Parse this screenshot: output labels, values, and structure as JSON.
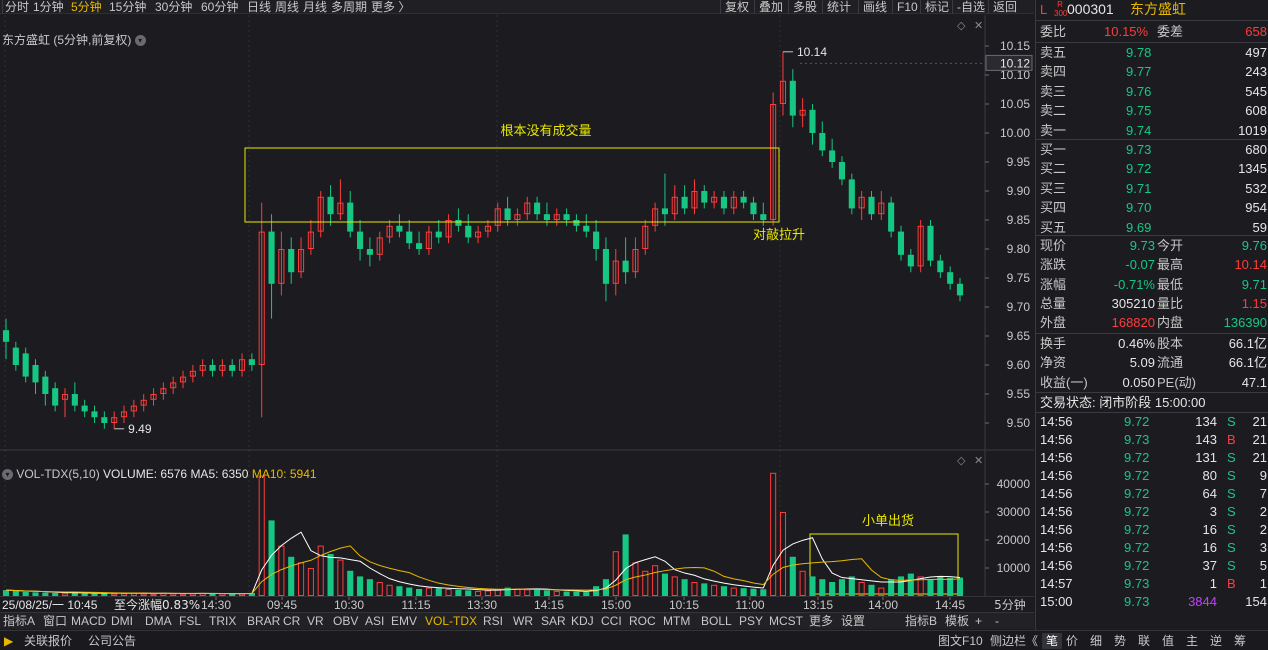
{
  "toolbar": {
    "periods": [
      "分时",
      "1分钟",
      "5分钟",
      "15分钟",
      "30分钟",
      "60分钟",
      "日线",
      "周线",
      "月线",
      "多周期",
      "更多 〉"
    ],
    "active_period": "5分钟",
    "tools": [
      "复权",
      "叠加",
      "多股",
      "统计",
      "画线",
      "F10",
      "标记",
      "-自选",
      "返回"
    ]
  },
  "chart": {
    "title": "东方盛虹 (5分钟,前复权)",
    "price_axis": [
      "10.15",
      "10.10",
      "10.05",
      "10.00",
      "9.95",
      "9.90",
      "9.85",
      "9.80",
      "9.75",
      "9.70",
      "9.65",
      "9.60",
      "9.55",
      "9.50"
    ],
    "current_price_label": "10.12",
    "high_label": "10.14",
    "low_label": "9.49",
    "annotations": {
      "no_volume": "根本没有成交量",
      "pullup": "对敲拉升",
      "small_orders": "小单出货"
    },
    "vol": {
      "name": "VOL-TDX(5,10)",
      "volume": "VOLUME: 6576",
      "ma5": "MA5: 6350",
      "ma10": "MA10: 5941",
      "axis": [
        "40000",
        "30000",
        "20000",
        "10000"
      ]
    },
    "time_axis": {
      "cursor": "25/08/25/一 10:45",
      "change": "至今涨幅0.83%",
      "ticks": [
        "14:30",
        "09:45",
        "10:30",
        "11:15",
        "13:30",
        "14:15",
        "15:00",
        "10:15",
        "11:00",
        "13:15",
        "14:00",
        "14:45"
      ],
      "period": "5分钟"
    }
  },
  "indicators": [
    "指标A",
    "窗口",
    "MACD",
    "DMI",
    "DMA",
    "FSL",
    "TRIX",
    "BRAR",
    "CR",
    "VR",
    "OBV",
    "ASI",
    "EMV",
    "VOL-TDX",
    "RSI",
    "WR",
    "SAR",
    "KDJ",
    "CCI",
    "ROC",
    "MTM",
    "BOLL",
    "PSY",
    "MCST",
    "更多",
    "设置",
    "指标B",
    "模板",
    "+",
    "-"
  ],
  "active_indicator": "VOL-TDX",
  "statusbar": {
    "left": [
      "关联报价",
      "公司公告"
    ],
    "right": [
      "图文F10",
      "侧边栏《",
      "笔",
      "价",
      "细",
      "势",
      "联",
      "值",
      "主",
      "逆",
      "筹"
    ]
  },
  "quote": {
    "market_tag": "L",
    "index_tag": "R\n300",
    "code": "000301",
    "name": "东方盛虹",
    "weibi_label": "委比",
    "weibi": "10.15%",
    "weicha_label": "委差",
    "weicha": "658",
    "asks": [
      {
        "label": "卖五",
        "price": "9.78",
        "vol": "497"
      },
      {
        "label": "卖四",
        "price": "9.77",
        "vol": "243"
      },
      {
        "label": "卖三",
        "price": "9.76",
        "vol": "545"
      },
      {
        "label": "卖二",
        "price": "9.75",
        "vol": "608"
      },
      {
        "label": "卖一",
        "price": "9.74",
        "vol": "1019"
      }
    ],
    "bids": [
      {
        "label": "买一",
        "price": "9.73",
        "vol": "680"
      },
      {
        "label": "买二",
        "price": "9.72",
        "vol": "1345"
      },
      {
        "label": "买三",
        "price": "9.71",
        "vol": "532"
      },
      {
        "label": "买四",
        "price": "9.70",
        "vol": "954"
      },
      {
        "label": "买五",
        "price": "9.69",
        "vol": "59"
      }
    ],
    "stats": [
      {
        "l1": "现价",
        "v1": "9.73",
        "c1": "green",
        "l2": "今开",
        "v2": "9.76",
        "c2": "green"
      },
      {
        "l1": "涨跌",
        "v1": "-0.07",
        "c1": "green",
        "l2": "最高",
        "v2": "10.14",
        "c2": "red"
      },
      {
        "l1": "涨幅",
        "v1": "-0.71%",
        "c1": "green",
        "l2": "最低",
        "v2": "9.71",
        "c2": "green"
      },
      {
        "l1": "总量",
        "v1": "305210",
        "c1": "white",
        "l2": "量比",
        "v2": "1.15",
        "c2": "red"
      },
      {
        "l1": "外盘",
        "v1": "168820",
        "c1": "red",
        "l2": "内盘",
        "v2": "136390",
        "c2": "green"
      }
    ],
    "stats2": [
      {
        "l1": "换手",
        "v1": "0.46%",
        "l2": "股本",
        "v2": "66.1亿"
      },
      {
        "l1": "净资",
        "v1": "5.09",
        "l2": "流通",
        "v2": "66.1亿"
      },
      {
        "l1": "收益(一)",
        "v1": "0.050",
        "l2": "PE(动)",
        "v2": "47.1"
      }
    ],
    "trade_status": "交易状态: 闭市阶段 15:00:00",
    "ticks": [
      {
        "t": "14:56",
        "p": "9.72",
        "v": "134",
        "side": "S",
        "n": "21"
      },
      {
        "t": "14:56",
        "p": "9.73",
        "v": "143",
        "side": "B",
        "n": "21"
      },
      {
        "t": "14:56",
        "p": "9.72",
        "v": "131",
        "side": "S",
        "n": "21"
      },
      {
        "t": "14:56",
        "p": "9.72",
        "v": "80",
        "side": "S",
        "n": "9"
      },
      {
        "t": "14:56",
        "p": "9.72",
        "v": "64",
        "side": "S",
        "n": "7"
      },
      {
        "t": "14:56",
        "p": "9.72",
        "v": "3",
        "side": "S",
        "n": "2"
      },
      {
        "t": "14:56",
        "p": "9.72",
        "v": "16",
        "side": "S",
        "n": "2"
      },
      {
        "t": "14:56",
        "p": "9.72",
        "v": "16",
        "side": "S",
        "n": "3"
      },
      {
        "t": "14:56",
        "p": "9.72",
        "v": "37",
        "side": "S",
        "n": "5"
      },
      {
        "t": "14:57",
        "p": "9.73",
        "v": "1",
        "side": "B",
        "n": "1"
      },
      {
        "t": "15:00",
        "p": "9.73",
        "v": "3844",
        "side": "",
        "n": "154"
      }
    ]
  },
  "colors": {
    "up": "#ff3b3b",
    "down": "#16c784",
    "annotation_box": "#e8e800",
    "ma5": "#ffffff",
    "ma10": "#e8b800",
    "background": "#1c1c20"
  },
  "chart_data": {
    "type": "candlestick",
    "ylim": [
      9.47,
      10.17
    ],
    "candles": [
      [
        9.66,
        9.68,
        9.64,
        9.61
      ],
      [
        9.63,
        9.64,
        9.6,
        9.59
      ],
      [
        9.62,
        9.63,
        9.58,
        9.57
      ],
      [
        9.6,
        9.61,
        9.57,
        9.55
      ],
      [
        9.58,
        9.59,
        9.55,
        9.53
      ],
      [
        9.56,
        9.57,
        9.53,
        9.52
      ],
      [
        9.54,
        9.56,
        9.55,
        9.51
      ],
      [
        9.55,
        9.57,
        9.53,
        9.52
      ],
      [
        9.53,
        9.54,
        9.52,
        9.51
      ],
      [
        9.52,
        9.53,
        9.51,
        9.5
      ],
      [
        9.51,
        9.52,
        9.5,
        9.49
      ],
      [
        9.5,
        9.52,
        9.51,
        9.49
      ],
      [
        9.51,
        9.53,
        9.52,
        9.5
      ],
      [
        9.52,
        9.54,
        9.53,
        9.51
      ],
      [
        9.53,
        9.55,
        9.54,
        9.52
      ],
      [
        9.54,
        9.56,
        9.55,
        9.53
      ],
      [
        9.55,
        9.57,
        9.56,
        9.54
      ],
      [
        9.56,
        9.58,
        9.57,
        9.55
      ],
      [
        9.57,
        9.59,
        9.58,
        9.56
      ],
      [
        9.58,
        9.6,
        9.59,
        9.57
      ],
      [
        9.59,
        9.61,
        9.6,
        9.58
      ],
      [
        9.6,
        9.61,
        9.59,
        9.58
      ],
      [
        9.59,
        9.61,
        9.6,
        9.58
      ],
      [
        9.6,
        9.61,
        9.59,
        9.58
      ],
      [
        9.59,
        9.62,
        9.61,
        9.58
      ],
      [
        9.61,
        9.62,
        9.6,
        9.59
      ],
      [
        9.6,
        9.88,
        9.83,
        9.51
      ],
      [
        9.83,
        9.86,
        9.74,
        9.68
      ],
      [
        9.74,
        9.83,
        9.8,
        9.72
      ],
      [
        9.8,
        9.82,
        9.76,
        9.74
      ],
      [
        9.76,
        9.82,
        9.8,
        9.75
      ],
      [
        9.8,
        9.85,
        9.83,
        9.79
      ],
      [
        9.83,
        9.9,
        9.89,
        9.82
      ],
      [
        9.89,
        9.91,
        9.86,
        9.84
      ],
      [
        9.86,
        9.92,
        9.88,
        9.85
      ],
      [
        9.88,
        9.9,
        9.83,
        9.82
      ],
      [
        9.83,
        9.85,
        9.8,
        9.78
      ],
      [
        9.8,
        9.82,
        9.79,
        9.77
      ],
      [
        9.79,
        9.83,
        9.82,
        9.78
      ],
      [
        9.82,
        9.85,
        9.84,
        9.81
      ],
      [
        9.84,
        9.86,
        9.83,
        9.82
      ],
      [
        9.83,
        9.85,
        9.81,
        9.8
      ],
      [
        9.81,
        9.83,
        9.8,
        9.79
      ],
      [
        9.8,
        9.84,
        9.83,
        9.79
      ],
      [
        9.83,
        9.85,
        9.82,
        9.81
      ],
      [
        9.82,
        9.86,
        9.85,
        9.81
      ],
      [
        9.85,
        9.87,
        9.84,
        9.83
      ],
      [
        9.84,
        9.86,
        9.82,
        9.81
      ],
      [
        9.82,
        9.84,
        9.83,
        9.81
      ],
      [
        9.83,
        9.85,
        9.84,
        9.82
      ],
      [
        9.84,
        9.88,
        9.87,
        9.83
      ],
      [
        9.87,
        9.89,
        9.85,
        9.84
      ],
      [
        9.85,
        9.87,
        9.86,
        9.84
      ],
      [
        9.86,
        9.89,
        9.88,
        9.85
      ],
      [
        9.88,
        9.89,
        9.86,
        9.85
      ],
      [
        9.86,
        9.88,
        9.85,
        9.84
      ],
      [
        9.85,
        9.87,
        9.86,
        9.84
      ],
      [
        9.86,
        9.87,
        9.85,
        9.84
      ],
      [
        9.85,
        9.86,
        9.84,
        9.83
      ],
      [
        9.84,
        9.86,
        9.83,
        9.82
      ],
      [
        9.83,
        9.85,
        9.8,
        9.78
      ],
      [
        9.8,
        9.82,
        9.74,
        9.71
      ],
      [
        9.74,
        9.8,
        9.78,
        9.72
      ],
      [
        9.78,
        9.82,
        9.76,
        9.74
      ],
      [
        9.76,
        9.82,
        9.8,
        9.75
      ],
      [
        9.8,
        9.85,
        9.84,
        9.79
      ],
      [
        9.84,
        9.88,
        9.87,
        9.83
      ],
      [
        9.87,
        9.93,
        9.86,
        9.84
      ],
      [
        9.86,
        9.91,
        9.89,
        9.85
      ],
      [
        9.89,
        9.91,
        9.87,
        9.86
      ],
      [
        9.87,
        9.92,
        9.9,
        9.86
      ],
      [
        9.9,
        9.91,
        9.88,
        9.87
      ],
      [
        9.88,
        9.9,
        9.89,
        9.87
      ],
      [
        9.89,
        9.9,
        9.87,
        9.86
      ],
      [
        9.87,
        9.9,
        9.89,
        9.86
      ],
      [
        9.89,
        9.9,
        9.88,
        9.87
      ],
      [
        9.88,
        9.89,
        9.86,
        9.85
      ],
      [
        9.86,
        9.88,
        9.85,
        9.84
      ],
      [
        9.85,
        10.07,
        10.05,
        9.84
      ],
      [
        10.05,
        10.14,
        10.09,
        10.03
      ],
      [
        10.09,
        10.11,
        10.03,
        10.01
      ],
      [
        10.03,
        10.06,
        10.04,
        10.01
      ],
      [
        10.04,
        10.05,
        10.0,
        9.98
      ],
      [
        10.0,
        10.02,
        9.97,
        9.96
      ],
      [
        9.97,
        9.99,
        9.95,
        9.94
      ],
      [
        9.95,
        9.96,
        9.92,
        9.91
      ],
      [
        9.92,
        9.93,
        9.87,
        9.86
      ],
      [
        9.87,
        9.9,
        9.89,
        9.85
      ],
      [
        9.89,
        9.9,
        9.86,
        9.85
      ],
      [
        9.86,
        9.9,
        9.88,
        9.85
      ],
      [
        9.88,
        9.89,
        9.83,
        9.82
      ],
      [
        9.83,
        9.84,
        9.79,
        9.78
      ],
      [
        9.79,
        9.8,
        9.77,
        9.76
      ],
      [
        9.77,
        9.85,
        9.84,
        9.76
      ],
      [
        9.84,
        9.85,
        9.78,
        9.77
      ],
      [
        9.78,
        9.79,
        9.76,
        9.75
      ],
      [
        9.76,
        9.77,
        9.74,
        9.73
      ],
      [
        9.74,
        9.75,
        9.72,
        9.71
      ]
    ],
    "volume": [
      2100,
      1800,
      1500,
      1300,
      1200,
      1100,
      1000,
      1300,
      900,
      800,
      1200,
      900,
      1000,
      1100,
      900,
      800,
      1000,
      900,
      800,
      900,
      1000,
      800,
      900,
      700,
      900,
      1100,
      43000,
      27000,
      18000,
      14000,
      12000,
      10000,
      18000,
      15000,
      13000,
      9000,
      7000,
      6000,
      5000,
      4000,
      3500,
      3000,
      2500,
      3000,
      2800,
      2500,
      2200,
      2000,
      1800,
      2000,
      2500,
      3000,
      2600,
      2400,
      2200,
      2000,
      1800,
      1600,
      1500,
      1400,
      3500,
      6000,
      16000,
      22000,
      12000,
      9000,
      11000,
      8000,
      7000,
      6000,
      5000,
      4500,
      4000,
      3500,
      3000,
      2800,
      2600,
      2400,
      44000,
      30000,
      14000,
      9000,
      7000,
      6000,
      5000,
      6000,
      7000,
      5000,
      4000,
      3000,
      6000,
      7000,
      8000,
      7000,
      6000,
      7000,
      6500,
      6576
    ]
  }
}
